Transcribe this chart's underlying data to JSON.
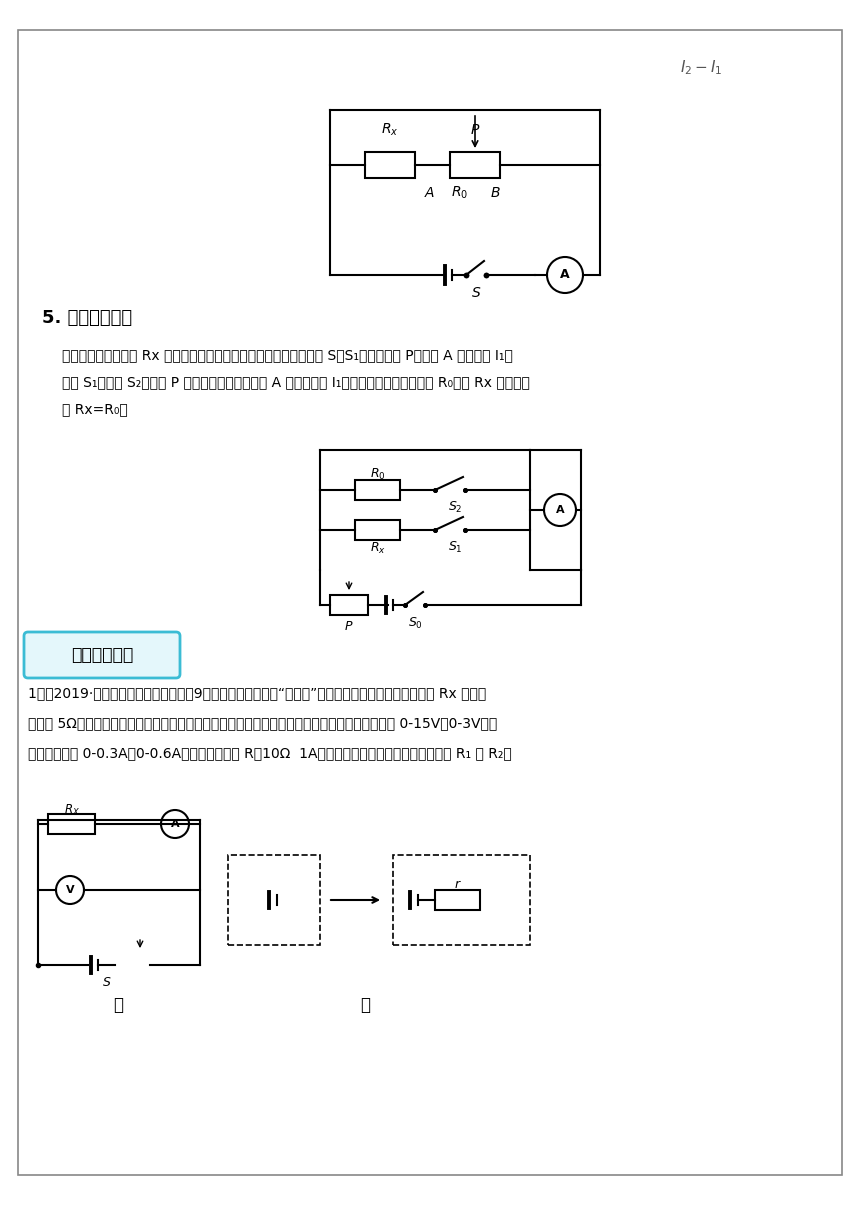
{
  "page_bg": "#ffffff",
  "border_color": "#888888",
  "text_color": "#000000",
  "section5_title": "5. 等效替代法：",
  "section5_body1": "用电阔箱测未知电阔 Rx 的阔值。电路设计举例：如下图所示，闭合 S、S₁，调节滑片 P，读出 A 表示数为 I₁；",
  "section5_body2": "断开 S₁，闭合 S₂，滑片 P 不动，调节电阔箱，使 A 表示数仍为 I₁，读出电阔箱连入的阔值 R₀，则 Rx 的表达式",
  "section5_body3": "为 Rx=R₀。",
  "section1_title": "课堂达标检测",
  "q1_text1": "1．（2019·四川省成都市石室天府中学9年级三模）小明利用“伏安法”测量定值的阔值，已知未知电阔 Rx 的阔值",
  "q1_text2": "不小于 5Ω，电源由两节干电池组成，除了开关、导线外，可供使用的实验器材有：电压表（量程 0-15V，0-3V），",
  "q1_text3": "电流表（量程 0-0.3A，0-0.6A），滑动变阔器 R（10Ω  1A），阔值已知且大小不等的定值电阔 R₁ 和 R₂。",
  "label_jia": "甲",
  "label_yi": "乙"
}
